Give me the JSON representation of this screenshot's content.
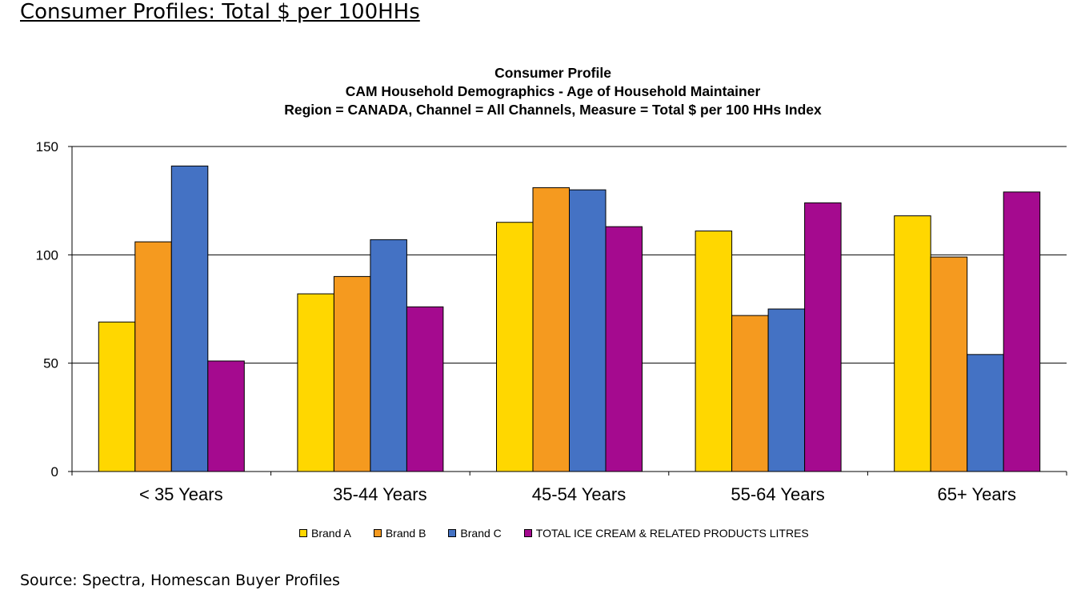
{
  "page": {
    "title": "Consumer Profiles: Total $ per 100HHs",
    "source": "Source: Spectra, Homescan Buyer Profiles"
  },
  "chart_data": {
    "type": "bar",
    "title_lines": [
      "Consumer Profile",
      "CAM Household Demographics - Age of Household Maintainer",
      "Region = CANADA,  Channel = All Channels, Measure = Total $ per 100 HHs Index"
    ],
    "categories": [
      "< 35 Years",
      "35-44 Years",
      "45-54 Years",
      "55-64 Years",
      "65+ Years"
    ],
    "series": [
      {
        "name": "Brand A",
        "color": "#FFD700",
        "values": [
          69,
          82,
          115,
          111,
          118
        ]
      },
      {
        "name": "Brand B",
        "color": "#F59A1F",
        "values": [
          106,
          90,
          131,
          72,
          99
        ]
      },
      {
        "name": "Brand C",
        "color": "#4472C4",
        "values": [
          141,
          107,
          130,
          75,
          54
        ]
      },
      {
        "name": "TOTAL ICE CREAM & RELATED PRODUCTS LITRES",
        "color": "#A50A8F",
        "values": [
          51,
          76,
          113,
          124,
          129
        ]
      }
    ],
    "yticks": [
      0,
      50,
      100,
      150
    ],
    "ylim": [
      0,
      150
    ],
    "grid": true,
    "legend_position": "bottom"
  }
}
